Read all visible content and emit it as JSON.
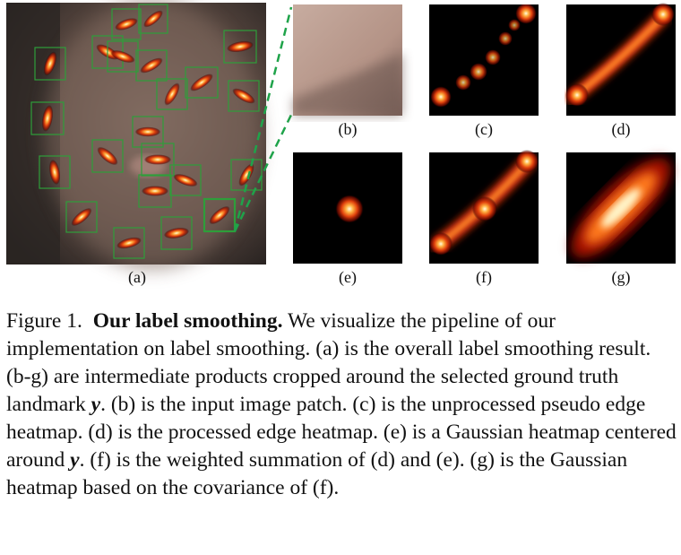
{
  "panels": {
    "a": "(a)",
    "b": "(b)",
    "c": "(c)",
    "d": "(d)",
    "e": "(e)",
    "f": "(f)",
    "g": "(g)"
  },
  "caption": {
    "fig_label": "Figure 1.",
    "title": "Our label smoothing.",
    "seg1": "We visualize the pipeline of our implementation on label smoothing. (a) is the overall label smoothing result. (b-g) are intermediate products cropped around the selected ground truth landmark",
    "y1": "y",
    "seg2": ". (b) is the input image patch. (c) is the unprocessed pseudo edge heatmap. (d) is the processed edge heatmap. (e) is a Gaussian heatmap centered around",
    "y2": "y",
    "seg3": ". (f) is the weighted summation of (d) and (e). (g) is the Gaussian heatmap based on the covariance of (f)."
  },
  "colors": {
    "box_green": "#2e9e3a",
    "dash_green": "#1fa34a",
    "heat_core": "#fffbe0",
    "heat_mid": "#ff7a1a",
    "heat_outer": "#b01400"
  }
}
